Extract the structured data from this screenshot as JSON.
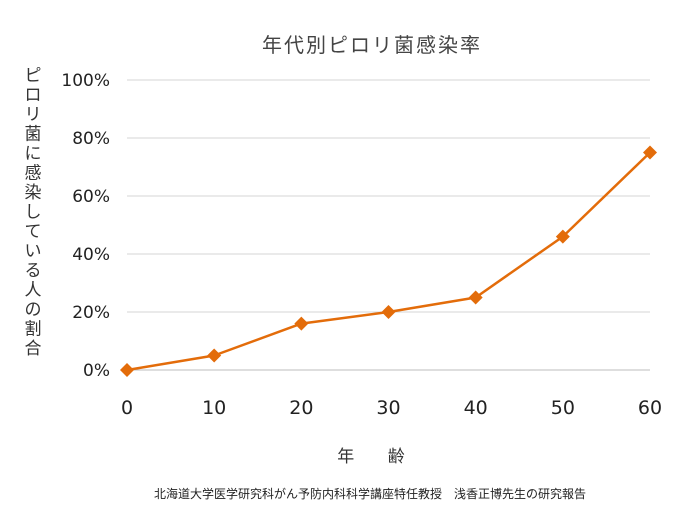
{
  "chart_data": {
    "type": "line",
    "title": "年代別ピロリ菌感染率",
    "xlabel": "年 齢",
    "ylabel": "ピロリ菌に感染している人の割合",
    "x": [
      0,
      10,
      20,
      30,
      40,
      50,
      60
    ],
    "series": [
      {
        "values": [
          0,
          5,
          16,
          20,
          25,
          46,
          75
        ]
      }
    ],
    "xlim": [
      0,
      60
    ],
    "ylim": [
      0,
      100
    ],
    "x_ticks": [
      "0",
      "10",
      "20",
      "30",
      "40",
      "50",
      "60"
    ],
    "y_ticks": [
      "0%",
      "20%",
      "40%",
      "60%",
      "80%",
      "100%"
    ],
    "grid": true,
    "line_color": "#E36C0A",
    "marker": "diamond"
  },
  "footnote": "北海道大学医学研究科がん予防内科科学講座特任教授　浅香正博先生の研究報告"
}
